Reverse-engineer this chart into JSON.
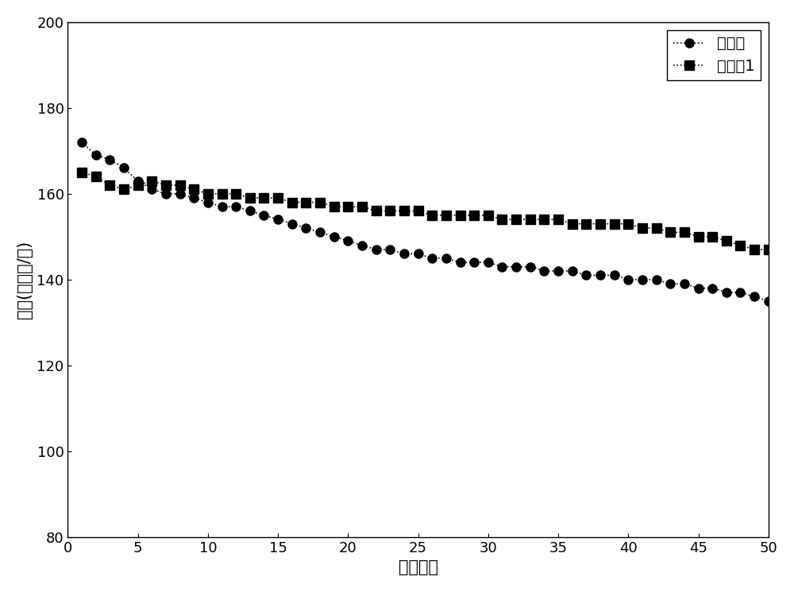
{
  "series1_label": "对比例",
  "series2_label": "实施例1",
  "series1_x": [
    1,
    2,
    3,
    4,
    5,
    6,
    7,
    8,
    9,
    10,
    11,
    12,
    13,
    14,
    15,
    16,
    17,
    18,
    19,
    20,
    21,
    22,
    23,
    24,
    25,
    26,
    27,
    28,
    29,
    30,
    31,
    32,
    33,
    34,
    35,
    36,
    37,
    38,
    39,
    40,
    41,
    42,
    43,
    44,
    45,
    46,
    47,
    48,
    49,
    50
  ],
  "series1_y": [
    172,
    169,
    168,
    166,
    163,
    161,
    160,
    160,
    159,
    158,
    157,
    157,
    156,
    155,
    154,
    153,
    152,
    151,
    150,
    149,
    148,
    147,
    147,
    146,
    146,
    145,
    145,
    144,
    144,
    144,
    143,
    143,
    143,
    142,
    142,
    142,
    141,
    141,
    141,
    140,
    140,
    140,
    139,
    139,
    138,
    138,
    137,
    137,
    136,
    135
  ],
  "series2_x": [
    1,
    2,
    3,
    4,
    5,
    6,
    7,
    8,
    9,
    10,
    11,
    12,
    13,
    14,
    15,
    16,
    17,
    18,
    19,
    20,
    21,
    22,
    23,
    24,
    25,
    26,
    27,
    28,
    29,
    30,
    31,
    32,
    33,
    34,
    35,
    36,
    37,
    38,
    39,
    40,
    41,
    42,
    43,
    44,
    45,
    46,
    47,
    48,
    49,
    50
  ],
  "series2_y": [
    165,
    164,
    162,
    161,
    162,
    163,
    162,
    162,
    161,
    160,
    160,
    160,
    159,
    159,
    159,
    158,
    158,
    158,
    157,
    157,
    157,
    156,
    156,
    156,
    156,
    155,
    155,
    155,
    155,
    155,
    154,
    154,
    154,
    154,
    154,
    153,
    153,
    153,
    153,
    153,
    152,
    152,
    151,
    151,
    150,
    150,
    149,
    148,
    147,
    147
  ],
  "xlabel": "循环次数",
  "ylabel": "容量(毫安时/克)",
  "xlim": [
    0,
    50
  ],
  "ylim": [
    80,
    200
  ],
  "xticks": [
    0,
    5,
    10,
    15,
    20,
    25,
    30,
    35,
    40,
    45,
    50
  ],
  "yticks": [
    80,
    100,
    120,
    140,
    160,
    180,
    200
  ],
  "color": "#000000",
  "linewidth": 1.2,
  "linestyle": "dotted",
  "marker1": "o",
  "marker2": "s",
  "markersize": 8,
  "legend_loc": "upper right",
  "background_color": "#ffffff",
  "tick_fontsize": 13,
  "label_fontsize": 15,
  "legend_fontsize": 14
}
